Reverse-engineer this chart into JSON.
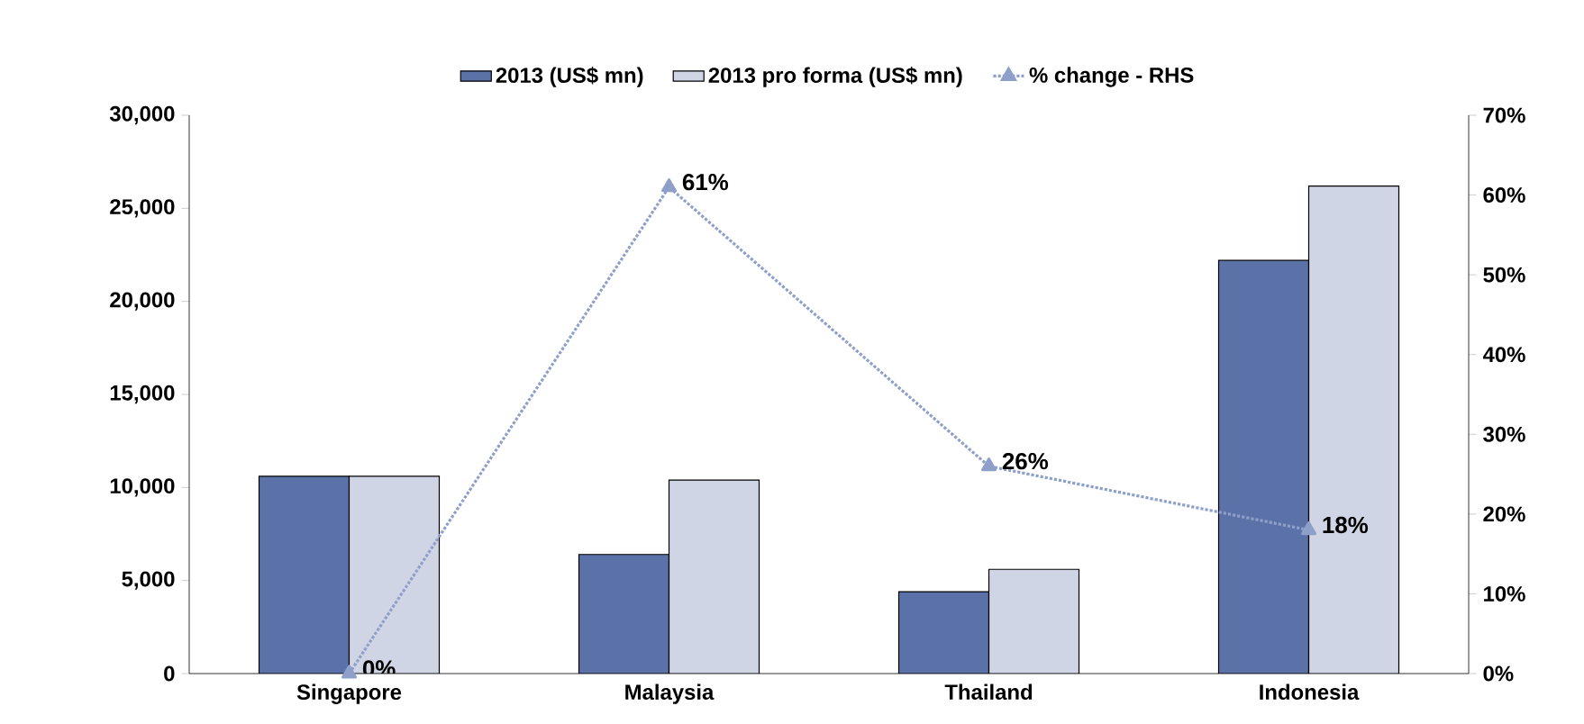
{
  "chart_data": {
    "type": "bar",
    "categories": [
      "Singapore",
      "Malaysia",
      "Thailand",
      "Indonesia"
    ],
    "series": [
      {
        "name": "2013 (US$ mn)",
        "color": "#5b72a8",
        "values": [
          10600,
          6400,
          4400,
          22200
        ]
      },
      {
        "name": "2013 pro forma (US$ mn)",
        "color": "#cfd5e5",
        "values": [
          10600,
          10400,
          5600,
          26200
        ]
      },
      {
        "name": "% change - RHS",
        "type": "line",
        "axis": "y2",
        "color": "#8e9fc9",
        "marker": "triangle",
        "line_style": "dotted",
        "values": [
          0,
          61,
          26,
          18
        ],
        "value_labels": [
          "0%",
          "61%",
          "26%",
          "18%"
        ]
      }
    ],
    "ylim": [
      0,
      30000
    ],
    "yticks": [
      {
        "value": 0,
        "label": "0"
      },
      {
        "value": 5000,
        "label": "5,000"
      },
      {
        "value": 10000,
        "label": "10,000"
      },
      {
        "value": 15000,
        "label": "15,000"
      },
      {
        "value": 20000,
        "label": "20,000"
      },
      {
        "value": 25000,
        "label": "25,000"
      },
      {
        "value": 30000,
        "label": "30,000"
      }
    ],
    "y2lim": [
      0,
      70
    ],
    "y2ticks": [
      {
        "value": 0,
        "label": "0%"
      },
      {
        "value": 10,
        "label": "10%"
      },
      {
        "value": 20,
        "label": "20%"
      },
      {
        "value": 30,
        "label": "30%"
      },
      {
        "value": 40,
        "label": "40%"
      },
      {
        "value": 50,
        "label": "50%"
      },
      {
        "value": 60,
        "label": "60%"
      },
      {
        "value": 70,
        "label": "70%"
      }
    ],
    "legend": "top"
  }
}
